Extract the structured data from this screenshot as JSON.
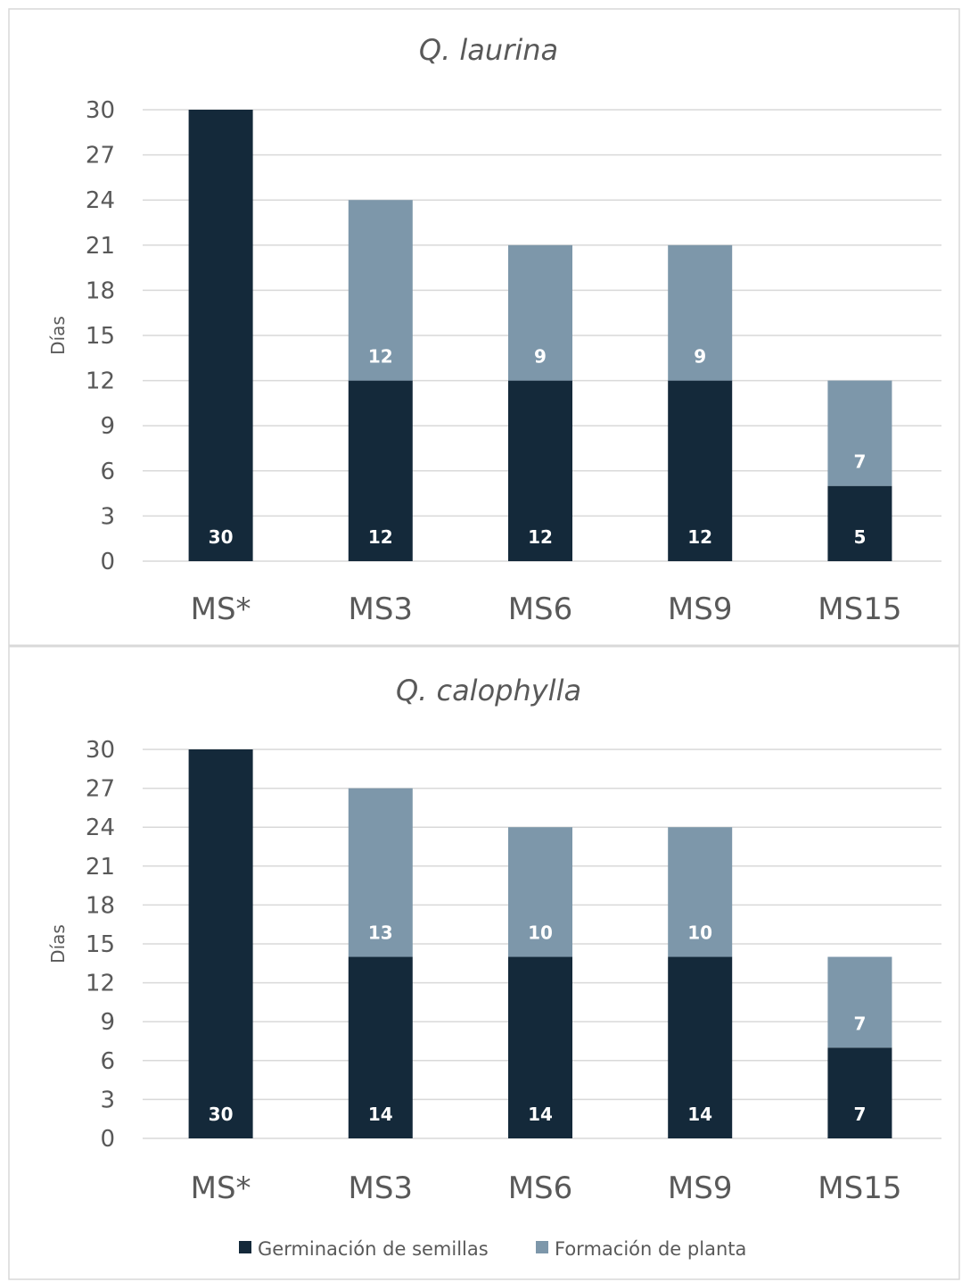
{
  "legend": [
    {
      "label": "Germinación de semillas",
      "color": "#14293a"
    },
    {
      "label": "Formación de planta",
      "color": "#7d97aa"
    }
  ],
  "chart_data": [
    {
      "type": "bar",
      "stacked": true,
      "title": "Q. laurina",
      "ylabel": "Días",
      "xlabel": "",
      "categories": [
        "MS*",
        "MS3",
        "MS6",
        "MS9",
        "MS15"
      ],
      "ylim": [
        0,
        30
      ],
      "yticks": [
        0,
        3,
        6,
        9,
        12,
        15,
        18,
        21,
        24,
        27,
        30
      ],
      "grid": true,
      "series": [
        {
          "name": "Germinación de semillas",
          "color": "#14293a",
          "values": [
            30,
            12,
            12,
            12,
            5
          ]
        },
        {
          "name": "Formación de planta",
          "color": "#7d97aa",
          "values": [
            null,
            12,
            9,
            9,
            7
          ]
        }
      ]
    },
    {
      "type": "bar",
      "stacked": true,
      "title": "Q. calophylla",
      "ylabel": "Días",
      "xlabel": "",
      "categories": [
        "MS*",
        "MS3",
        "MS6",
        "MS9",
        "MS15"
      ],
      "ylim": [
        0,
        30
      ],
      "yticks": [
        0,
        3,
        6,
        9,
        12,
        15,
        18,
        21,
        24,
        27,
        30
      ],
      "grid": true,
      "series": [
        {
          "name": "Germinación de semillas",
          "color": "#14293a",
          "values": [
            30,
            14,
            14,
            14,
            7
          ]
        },
        {
          "name": "Formación de planta",
          "color": "#7d97aa",
          "values": [
            null,
            13,
            10,
            10,
            7
          ]
        }
      ]
    }
  ]
}
